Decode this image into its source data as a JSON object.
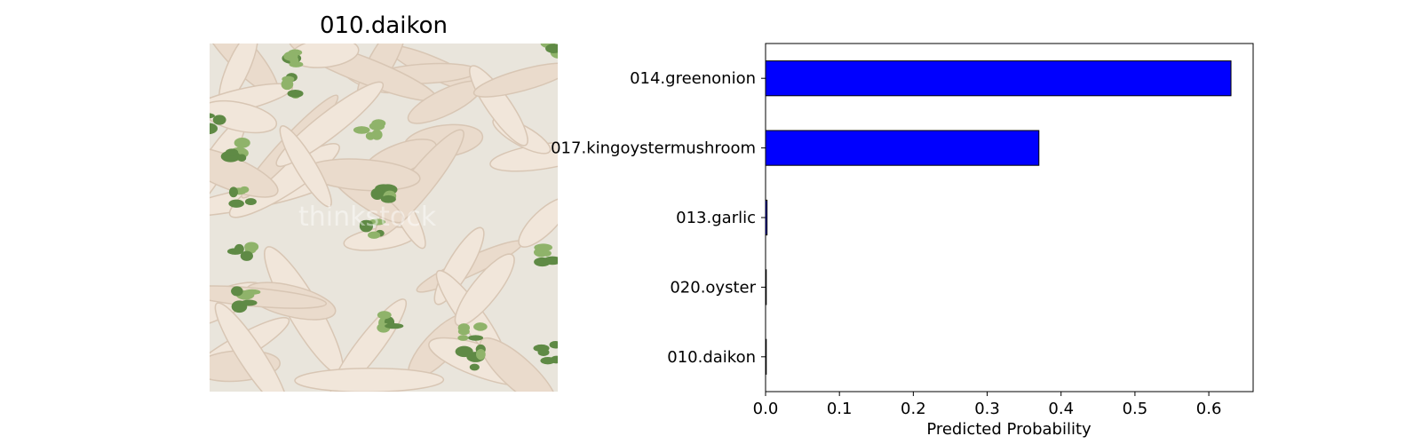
{
  "image_panel": {
    "title": "010.daikon",
    "watermark": "thinkstock",
    "colors": {
      "background": "#e9e5dc",
      "radish": "#f1e6da",
      "radish_shade": "#d8c6b4",
      "leaf": "#5f8a45",
      "leaf_light": "#8fb36a"
    }
  },
  "chart_data": {
    "type": "bar",
    "orientation": "horizontal",
    "categories": [
      "014.greenonion",
      "017.kingoystermushroom",
      "013.garlic",
      "020.oyster",
      "010.daikon"
    ],
    "values": [
      0.63,
      0.37,
      0.002,
      0.0005,
      0.0003
    ],
    "xlabel": "Predicted Probability",
    "xlim": [
      0,
      0.66
    ],
    "xticks": [
      "0.0",
      "0.1",
      "0.2",
      "0.3",
      "0.4",
      "0.5",
      "0.6"
    ],
    "bar_color": "#0000ff",
    "grid": false
  }
}
